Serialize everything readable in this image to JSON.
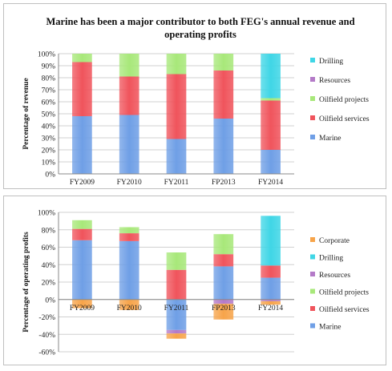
{
  "chart_data": [
    {
      "type": "bar",
      "stacked": true,
      "title": "Marine has been a major contributor to both FEG's annual revenue and operating profits",
      "ylabel": "Percentage of revenue",
      "xlabel": "",
      "categories": [
        "FY2009",
        "FY2010",
        "FY2011",
        "FP2013",
        "FY2014"
      ],
      "ylim": [
        0,
        100
      ],
      "yticks": [
        "0%",
        "10%",
        "20%",
        "30%",
        "40%",
        "50%",
        "60%",
        "70%",
        "80%",
        "90%",
        "100%"
      ],
      "ytick_values": [
        0,
        10,
        20,
        30,
        40,
        50,
        60,
        70,
        80,
        90,
        100
      ],
      "grid": true,
      "legend": "right",
      "series": [
        {
          "name": "Marine",
          "color": "#6f9fe6",
          "values": [
            48,
            49,
            29,
            46,
            20
          ]
        },
        {
          "name": "Oilfield services",
          "color": "#f0545c",
          "values": [
            45,
            32,
            54,
            40,
            41
          ]
        },
        {
          "name": "Oilfield projects",
          "color": "#a8e87a",
          "values": [
            7,
            19,
            17,
            14,
            2
          ]
        },
        {
          "name": "Resources",
          "color": "#b47ac8",
          "values": [
            0,
            0,
            0,
            0,
            0
          ]
        },
        {
          "name": "Drilling",
          "color": "#3fd6e6",
          "values": [
            0,
            0,
            0,
            0,
            37
          ]
        }
      ]
    },
    {
      "type": "bar",
      "stacked": true,
      "title": "",
      "ylabel": "Percentage of operating profits",
      "xlabel": "",
      "categories": [
        "FY2009",
        "FY2010",
        "FY2011",
        "FP2013",
        "FY2014"
      ],
      "ylim": [
        -60,
        100
      ],
      "yticks": [
        "-60%",
        "-40%",
        "-20%",
        "0%",
        "20%",
        "40%",
        "60%",
        "80%",
        "100%"
      ],
      "ytick_values": [
        -60,
        -40,
        -20,
        0,
        20,
        40,
        60,
        80,
        100
      ],
      "grid": true,
      "legend": "right",
      "series": [
        {
          "name": "Marine",
          "color": "#6f9fe6",
          "values": [
            68,
            67,
            -35,
            38,
            25
          ]
        },
        {
          "name": "Oilfield services",
          "color": "#f0545c",
          "values": [
            13,
            9,
            34,
            14,
            14
          ]
        },
        {
          "name": "Oilfield projects",
          "color": "#a8e87a",
          "values": [
            10,
            7,
            20,
            23,
            0
          ]
        },
        {
          "name": "Resources",
          "color": "#b47ac8",
          "values": [
            0,
            0,
            -4,
            -5,
            -2
          ]
        },
        {
          "name": "Drilling",
          "color": "#3fd6e6",
          "values": [
            0,
            0,
            0,
            0,
            57
          ]
        },
        {
          "name": "Corporate",
          "color": "#f7a44a",
          "values": [
            -10,
            -12,
            -6,
            -18,
            -4
          ]
        }
      ]
    }
  ]
}
